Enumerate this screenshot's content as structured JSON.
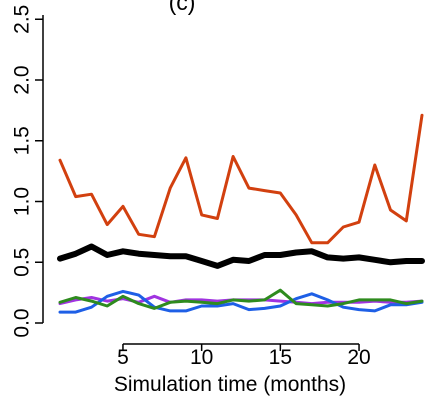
{
  "chart_data": {
    "type": "line",
    "title": "(c)",
    "xlabel": "Simulation time (months)",
    "ylabel": "",
    "xlim": [
      0,
      25
    ],
    "ylim": [
      -0.05,
      2.55
    ],
    "x_ticks": [
      5,
      10,
      15,
      20
    ],
    "y_ticks": [
      0.0,
      0.5,
      1.0,
      1.5,
      2.0,
      2.5
    ],
    "x_tick_labels": [
      "5",
      "10",
      "15",
      "20"
    ],
    "y_tick_labels": [
      "0.0",
      "0.5",
      "1.0",
      "1.5",
      "2.0",
      "2.5"
    ],
    "grid": false,
    "x": [
      1,
      2,
      3,
      4,
      5,
      6,
      7,
      8,
      9,
      10,
      11,
      12,
      13,
      14,
      15,
      16,
      17,
      18,
      19,
      20,
      21,
      22,
      23,
      24
    ],
    "series": [
      {
        "color": "#d2400f",
        "width": 3,
        "values": [
          1.34,
          1.04,
          1.06,
          0.81,
          0.96,
          0.73,
          0.71,
          1.11,
          1.36,
          0.89,
          0.86,
          1.37,
          1.11,
          1.09,
          1.07,
          0.89,
          0.66,
          0.66,
          0.79,
          0.83,
          1.3,
          0.93,
          0.84,
          1.71
        ]
      },
      {
        "color": "#000000",
        "width": 6,
        "values": [
          0.53,
          0.57,
          0.63,
          0.56,
          0.59,
          0.57,
          0.56,
          0.55,
          0.55,
          0.51,
          0.47,
          0.52,
          0.51,
          0.56,
          0.56,
          0.58,
          0.59,
          0.54,
          0.53,
          0.54,
          0.52,
          0.5,
          0.51,
          0.51
        ]
      },
      {
        "color": "#a033e0",
        "width": 3,
        "values": [
          0.16,
          0.19,
          0.21,
          0.18,
          0.2,
          0.17,
          0.22,
          0.17,
          0.19,
          0.19,
          0.18,
          0.19,
          0.19,
          0.19,
          0.18,
          0.17,
          0.16,
          0.17,
          0.17,
          0.17,
          0.18,
          0.17,
          0.17,
          0.18
        ]
      },
      {
        "color": "#1e5fe6",
        "width": 3,
        "values": [
          0.09,
          0.09,
          0.13,
          0.22,
          0.26,
          0.23,
          0.13,
          0.1,
          0.1,
          0.14,
          0.14,
          0.16,
          0.11,
          0.12,
          0.14,
          0.2,
          0.24,
          0.19,
          0.13,
          0.11,
          0.1,
          0.15,
          0.15,
          0.17
        ]
      },
      {
        "color": "#2e8b1e",
        "width": 3,
        "values": [
          0.17,
          0.21,
          0.18,
          0.14,
          0.22,
          0.16,
          0.12,
          0.17,
          0.18,
          0.17,
          0.16,
          0.19,
          0.18,
          0.19,
          0.27,
          0.16,
          0.15,
          0.14,
          0.16,
          0.19,
          0.19,
          0.19,
          0.16,
          0.18
        ]
      }
    ]
  }
}
